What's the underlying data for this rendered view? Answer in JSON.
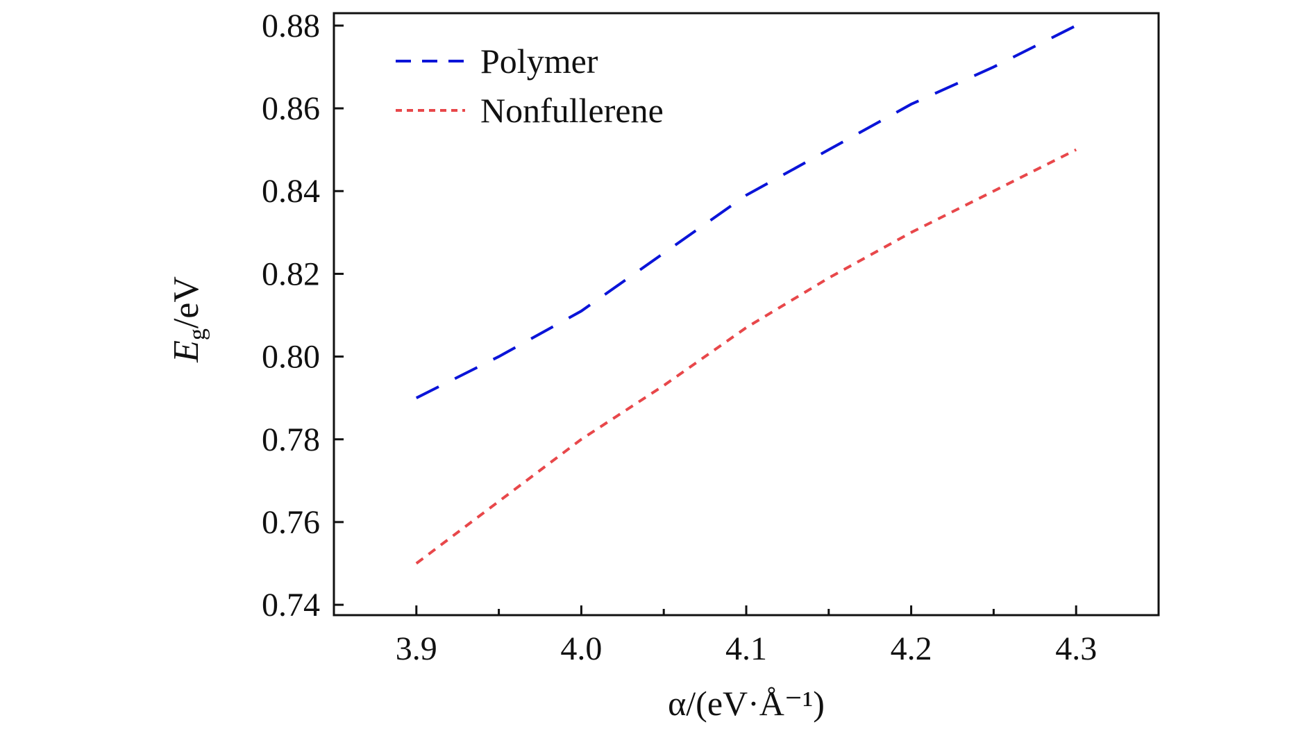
{
  "chart_data": {
    "type": "line",
    "xlabel": "α/(eV·Å⁻¹)",
    "ylabel": {
      "main": "E",
      "sub": "g",
      "unit": "/eV"
    },
    "xlim": [
      3.85,
      4.35
    ],
    "ylim": [
      0.7375,
      0.883
    ],
    "xticks": [
      "3.9",
      "4.0",
      "4.1",
      "4.2",
      "4.3"
    ],
    "xtick_values": [
      3.9,
      4.0,
      4.1,
      4.2,
      4.3
    ],
    "xminor": [
      3.95,
      4.05,
      4.15,
      4.25
    ],
    "yticks": [
      "0.74",
      "0.76",
      "0.78",
      "0.80",
      "0.82",
      "0.84",
      "0.86",
      "0.88"
    ],
    "ytick_values": [
      0.74,
      0.76,
      0.78,
      0.8,
      0.82,
      0.84,
      0.86,
      0.88
    ],
    "grid": false,
    "legend_position": "top-left",
    "x": [
      3.9,
      3.95,
      4.0,
      4.05,
      4.1,
      4.15,
      4.2,
      4.25,
      4.3
    ],
    "series": [
      {
        "name": "Polymer",
        "color": "#0a14d8",
        "dash": "dashed",
        "values": [
          0.79,
          0.8,
          0.811,
          0.825,
          0.839,
          0.85,
          0.861,
          0.87,
          0.88
        ]
      },
      {
        "name": "Nonfullerene",
        "color": "#e8474a",
        "dash": "dotted",
        "values": [
          0.75,
          0.765,
          0.78,
          0.793,
          0.807,
          0.819,
          0.83,
          0.84,
          0.85
        ]
      }
    ]
  }
}
